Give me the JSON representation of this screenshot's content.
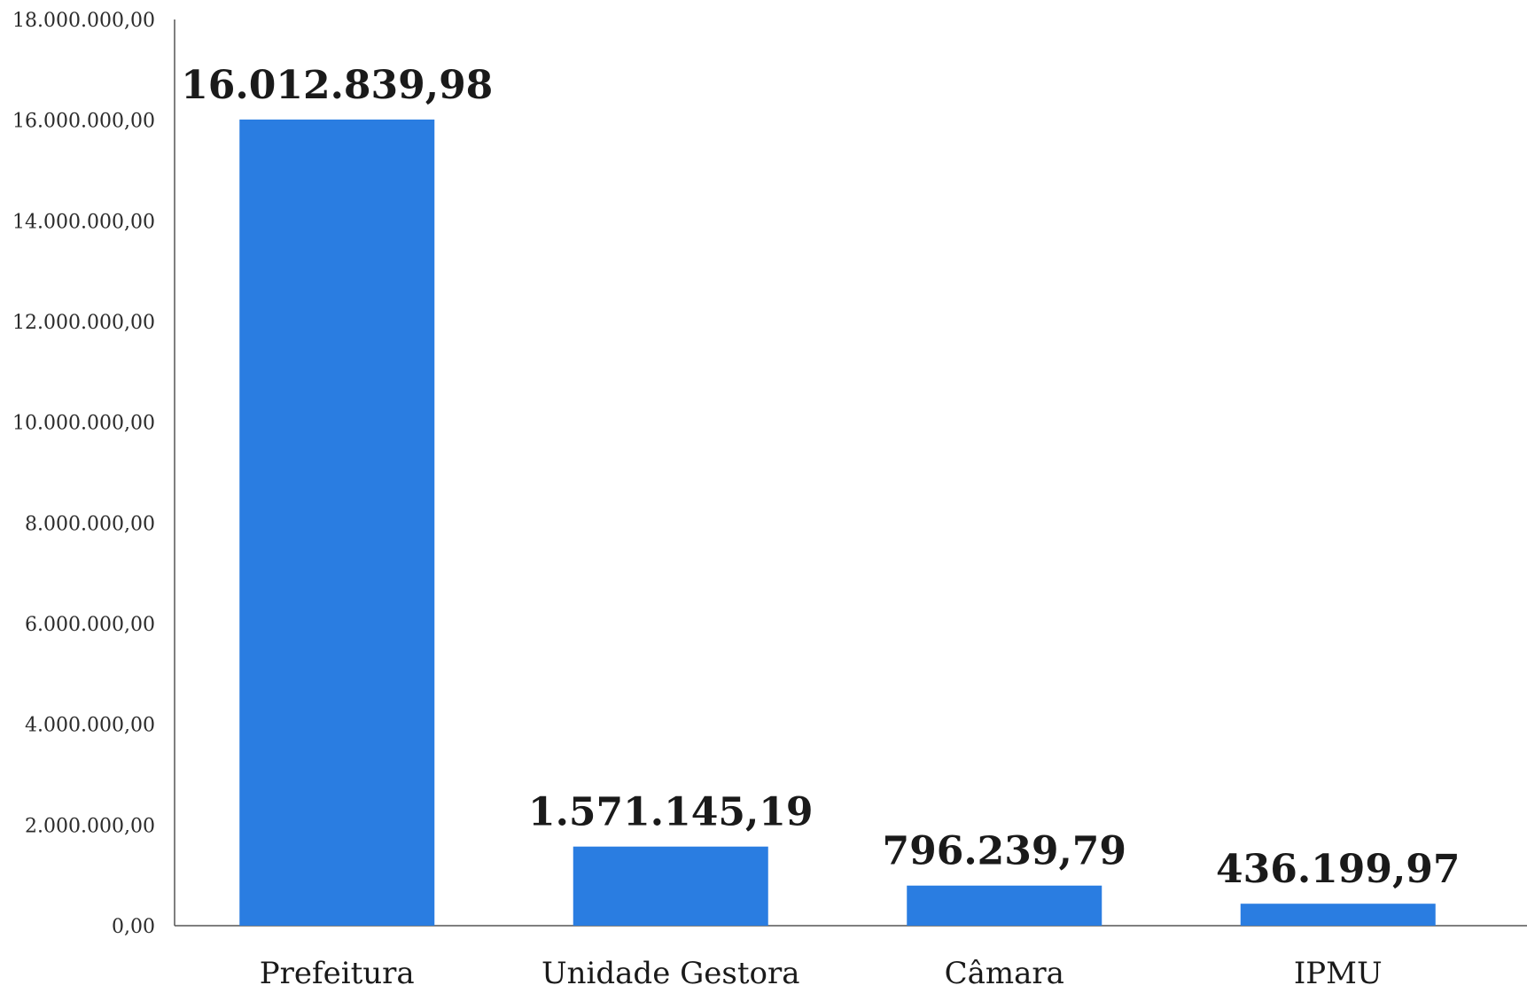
{
  "chart_data": {
    "type": "bar",
    "title": "",
    "xlabel": "",
    "ylabel": "",
    "categories": [
      "Prefeitura",
      "Unidade Gestora",
      "Câmara",
      "IPMU"
    ],
    "values": [
      16012839.98,
      1571145.19,
      796239.79,
      436199.97
    ],
    "value_labels": [
      "16.012.839,98",
      "1.571.145,19",
      "796.239,79",
      "436.199,97"
    ],
    "ylim": [
      0,
      18000000
    ],
    "yticks": [
      0,
      2000000,
      4000000,
      6000000,
      8000000,
      10000000,
      12000000,
      14000000,
      16000000,
      18000000
    ],
    "ytick_labels": [
      "0,00",
      "2.000.000,00",
      "4.000.000,00",
      "6.000.000,00",
      "8.000.000,00",
      "10.000.000,00",
      "12.000.000,00",
      "14.000.000,00",
      "16.000.000,00",
      "18.000.000,00"
    ],
    "grid": false,
    "legend": "none",
    "bar_color": "#2a7de1"
  }
}
